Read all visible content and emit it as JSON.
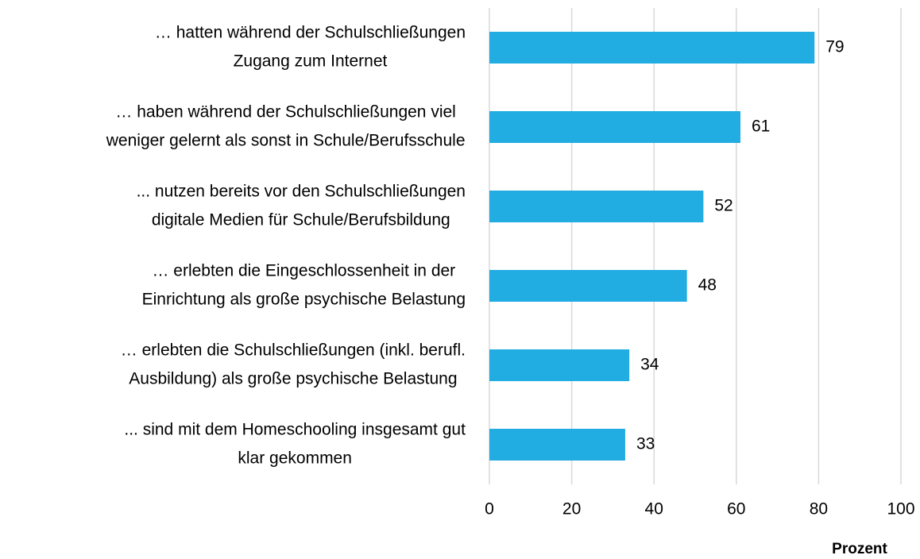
{
  "chart_data": {
    "type": "bar",
    "orientation": "horizontal",
    "categories": [
      [
        "… hatten während der Schulschließungen",
        "Zugang zum Internet"
      ],
      [
        "… haben während der Schulschließungen viel",
        "weniger gelernt als sonst in Schule/Berufsschule"
      ],
      [
        "... nutzen bereits vor den Schulschließungen",
        "digitale Medien für Schule/Berufsbildung"
      ],
      [
        "… erlebten die Eingeschlossenheit in der",
        "Einrichtung als große psychische Belastung"
      ],
      [
        "… erlebten die Schulschließungen (inkl. berufl.",
        "Ausbildung) als große psychische Belastung"
      ],
      [
        "... sind mit dem Homeschooling insgesamt gut",
        "klar gekommen"
      ]
    ],
    "values": [
      79,
      61,
      52,
      48,
      34,
      33
    ],
    "color": "#21ace2",
    "xlim": [
      0,
      100
    ],
    "xticks": [
      0,
      20,
      40,
      60,
      80,
      100
    ],
    "xlabel": "Prozent",
    "grid": true
  }
}
